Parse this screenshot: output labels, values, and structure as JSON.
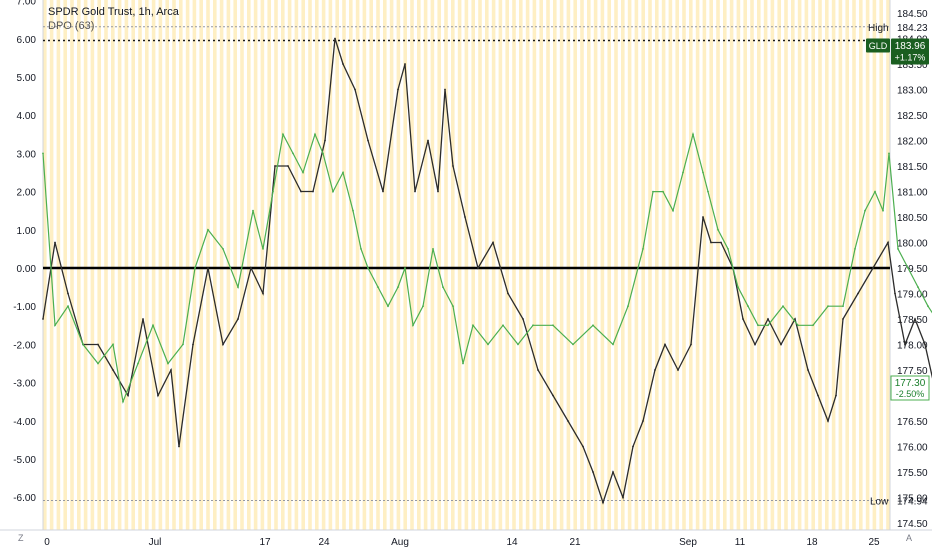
{
  "header": {
    "title": "SPDR Gold Trust, 1h, Arca",
    "indicator": "DPO (63)"
  },
  "chart_data": {
    "type": "line",
    "left_axis": {
      "ticks": [
        "7.00",
        "6.00",
        "5.00",
        "4.00",
        "3.00",
        "2.00",
        "1.00",
        "0.00",
        "-1.00",
        "-2.00",
        "-3.00",
        "-4.00",
        "-5.00",
        "-6.00"
      ],
      "ylim": [
        -6.7,
        7.0
      ]
    },
    "right_axis": {
      "ticks": [
        "184.50",
        "184.00",
        "183.50",
        "183.00",
        "182.50",
        "182.00",
        "181.50",
        "181.00",
        "180.50",
        "180.00",
        "179.50",
        "179.00",
        "178.50",
        "178.00",
        "177.50",
        "177.00",
        "176.50",
        "176.00",
        "175.50",
        "175.00",
        "174.50"
      ],
      "ylim": [
        174.5,
        184.5
      ]
    },
    "x_ticks": [
      "0",
      "Jul",
      "17",
      "24",
      "Aug",
      "14",
      "21",
      "Sep",
      "11",
      "18",
      "25"
    ],
    "badges": {
      "high_label": "High",
      "high_value": "184.23",
      "low_label": "Low",
      "low_value": "174.94",
      "gld_symbol": "GLD",
      "gld_price": "183.96",
      "gld_change": "+1.17%",
      "dpo_price": "177.30",
      "dpo_change": "-2.50%"
    },
    "series": [
      {
        "role": "price",
        "color": "#2c2c2c",
        "x": [
          0,
          12,
          25,
          40,
          55,
          70,
          85,
          100,
          115,
          128,
          136,
          150,
          165,
          180,
          195,
          208,
          220,
          232,
          245,
          258,
          270,
          282,
          292,
          300,
          312,
          325,
          340,
          355,
          362,
          372,
          385,
          395,
          402,
          410,
          422,
          435,
          450,
          465,
          480,
          495,
          510,
          525,
          540,
          550,
          560,
          570,
          580,
          590,
          600,
          612,
          622,
          635,
          648,
          660,
          668,
          678,
          690,
          700,
          712,
          725,
          738,
          752,
          765,
          775,
          785,
          793,
          800,
          815,
          830,
          845,
          852,
          862,
          872,
          882,
          890
        ],
        "values": [
          178.5,
          180.0,
          179.0,
          178.0,
          178.0,
          177.5,
          177.0,
          178.5,
          177.0,
          177.5,
          176.0,
          178.0,
          179.5,
          178.0,
          178.5,
          179.5,
          179.0,
          181.5,
          181.5,
          181.0,
          181.0,
          182.0,
          184.0,
          183.5,
          183.0,
          182.0,
          181.0,
          183.0,
          183.5,
          181.0,
          182.0,
          181.0,
          183.0,
          181.5,
          180.5,
          179.5,
          180.0,
          179.0,
          178.5,
          177.5,
          177.0,
          176.5,
          176.0,
          175.5,
          174.9,
          175.5,
          175.0,
          176.0,
          176.5,
          177.5,
          178.0,
          177.5,
          178.0,
          180.5,
          180.0,
          180.0,
          179.5,
          178.5,
          178.0,
          178.5,
          178.0,
          178.5,
          177.5,
          177.0,
          176.5,
          177.0,
          178.5,
          179.0,
          179.5,
          180.0,
          179.0,
          178.0,
          178.5,
          178.0,
          177.3
        ]
      },
      {
        "role": "dpo",
        "color": "#4caf50",
        "x": [
          0,
          12,
          25,
          40,
          55,
          70,
          80,
          95,
          110,
          125,
          140,
          152,
          165,
          180,
          195,
          210,
          220,
          230,
          240,
          250,
          260,
          272,
          280,
          290,
          300,
          310,
          318,
          325,
          335,
          345,
          355,
          362,
          370,
          380,
          390,
          400,
          410,
          420,
          430,
          445,
          460,
          475,
          490,
          510,
          530,
          550,
          570,
          585,
          600,
          610,
          620,
          630,
          640,
          650,
          660,
          665,
          675,
          685,
          695,
          705,
          715,
          725,
          740,
          755,
          770,
          785,
          800,
          812,
          822,
          832,
          840,
          846,
          855,
          865,
          875,
          885,
          890
        ],
        "values": [
          3.0,
          -1.5,
          -1.0,
          -2.0,
          -2.5,
          -2.0,
          -3.5,
          -2.5,
          -1.5,
          -2.5,
          -2.0,
          0.0,
          1.0,
          0.5,
          -0.5,
          1.5,
          0.5,
          2.0,
          3.5,
          3.0,
          2.5,
          3.5,
          3.0,
          2.0,
          2.5,
          1.5,
          0.5,
          0.0,
          -0.5,
          -1.0,
          -0.5,
          0.0,
          -1.5,
          -1.0,
          0.5,
          -0.5,
          -1.0,
          -2.5,
          -1.5,
          -2.0,
          -1.5,
          -2.0,
          -1.5,
          -1.5,
          -2.0,
          -1.5,
          -2.0,
          -1.0,
          0.5,
          2.0,
          2.0,
          1.5,
          2.5,
          3.5,
          2.5,
          2.0,
          1.0,
          0.5,
          -0.5,
          -1.0,
          -1.5,
          -1.5,
          -1.0,
          -1.5,
          -1.5,
          -1.0,
          -1.0,
          0.5,
          1.5,
          2.0,
          1.5,
          3.0,
          0.5,
          0.0,
          -0.5,
          -1.0,
          -1.2
        ]
      }
    ]
  }
}
